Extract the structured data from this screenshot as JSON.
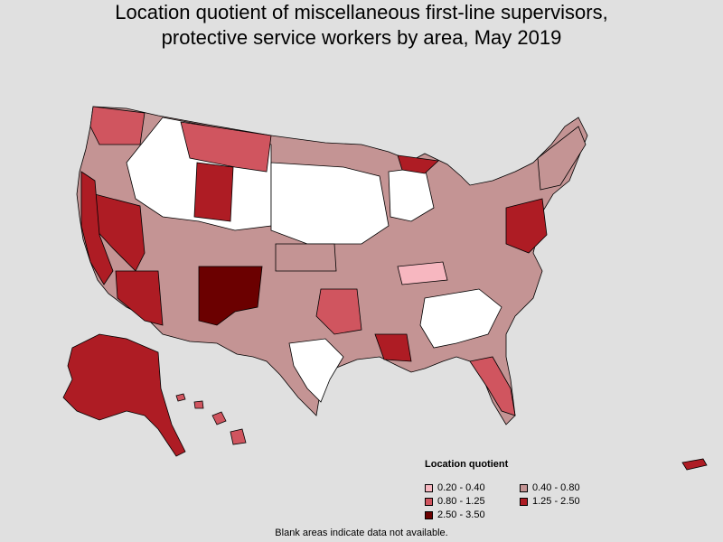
{
  "title_line1": "Location quotient of miscellaneous first-line supervisors,",
  "title_line2": "protective service workers by area, May 2019",
  "legend": {
    "title": "Location quotient",
    "items": [
      {
        "label": "0.20 - 0.40",
        "color": "#f7b7c0"
      },
      {
        "label": "0.40 - 0.80",
        "color": "#c49494"
      },
      {
        "label": "0.80 - 1.25",
        "color": "#d0555f"
      },
      {
        "label": "1.25 - 2.50",
        "color": "#ae1c24"
      },
      {
        "label": "2.50 - 3.50",
        "color": "#6b0000"
      }
    ]
  },
  "note": "Blank areas indicate data not available.",
  "colors": {
    "background": "#e0e0e0",
    "blank": "#ffffff",
    "border": "#000000"
  }
}
